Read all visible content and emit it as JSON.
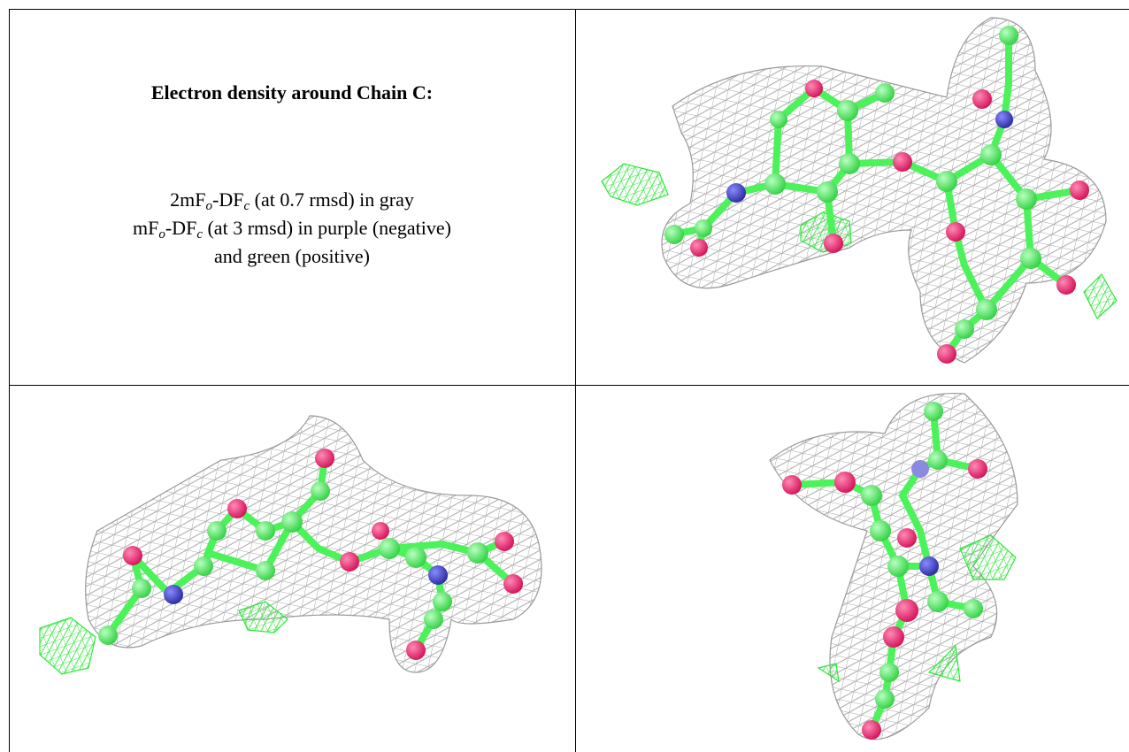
{
  "caption": {
    "title": "Electron density around Chain C:",
    "lines": [
      [
        "2mF",
        "o",
        "-DF",
        "c",
        " (at 0.7 rmsd) in gray"
      ],
      [
        "mF",
        "o",
        "-DF",
        "c",
        " (at 3 rmsd) in purple (negative)"
      ],
      [
        "and green (positive)"
      ]
    ]
  }
}
